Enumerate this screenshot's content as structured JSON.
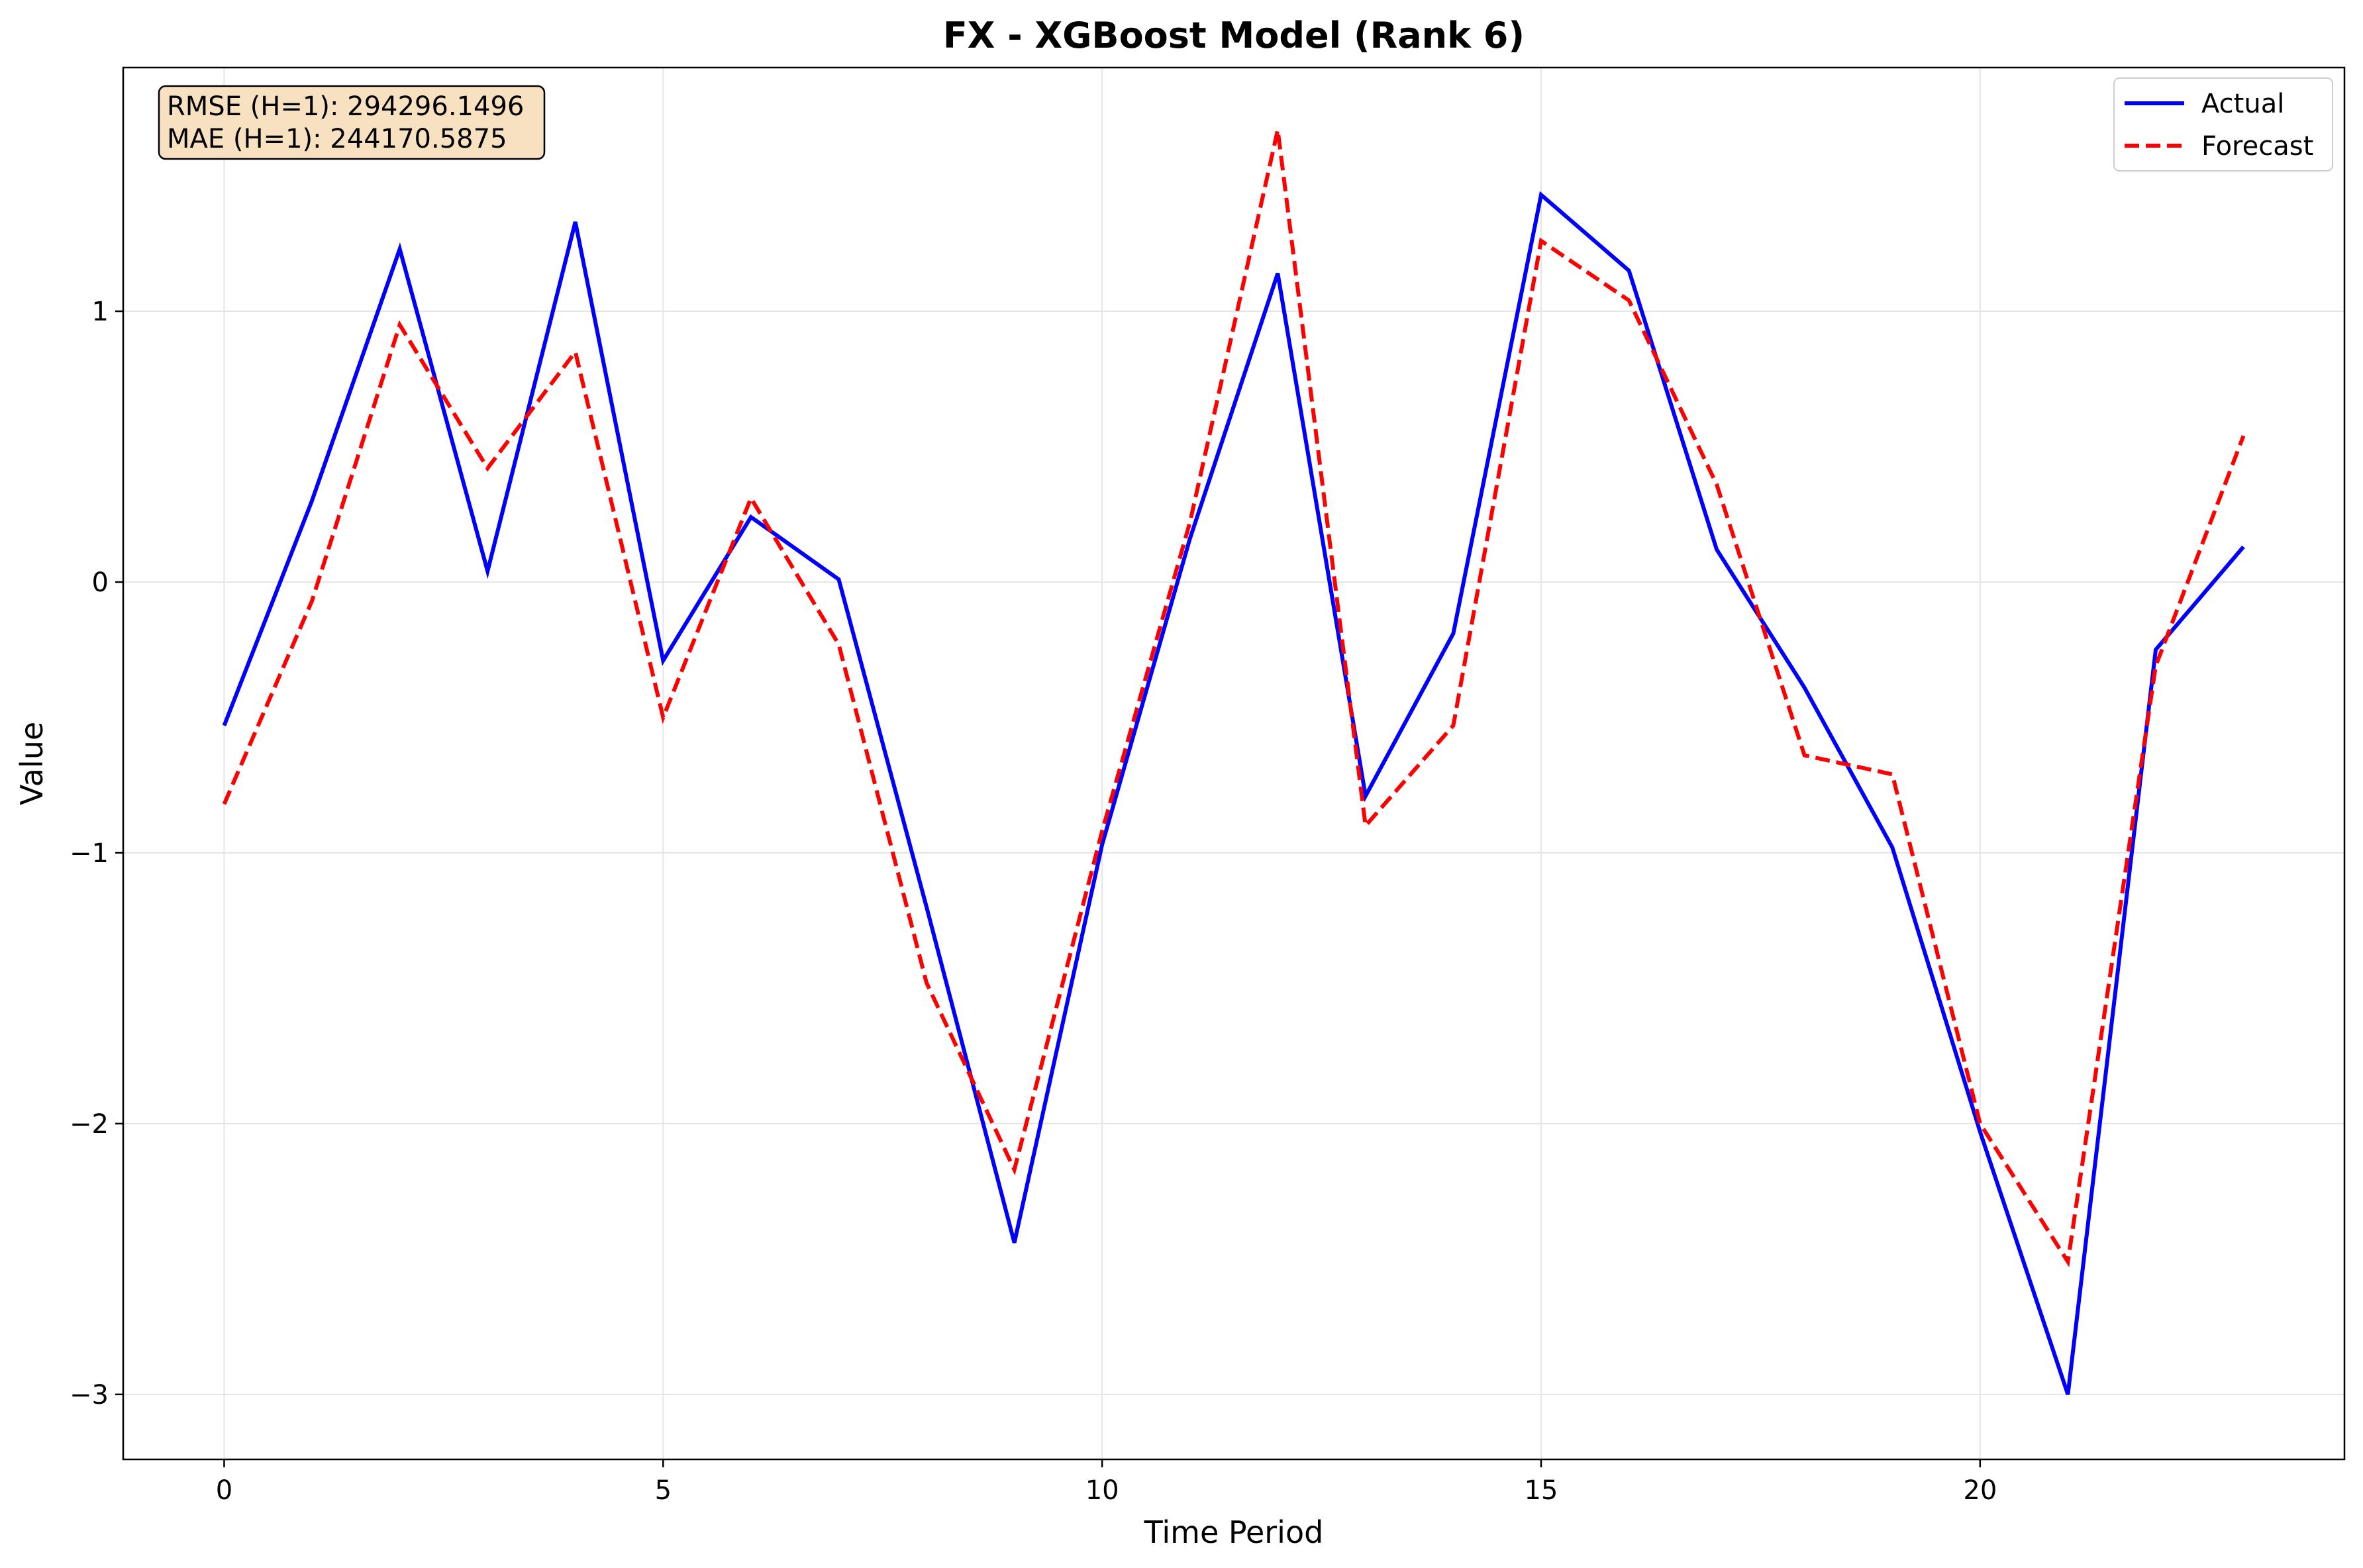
{
  "chart_data": {
    "type": "line",
    "title": "FX - XGBoost Model (Rank 6)",
    "xlabel": "Time Period",
    "ylabel": "Value",
    "xlim": [
      -1.15,
      24.15
    ],
    "ylim": [
      -3.24,
      1.9
    ],
    "xticks": [
      0,
      5,
      10,
      15,
      20
    ],
    "yticks": [
      1,
      0,
      -1,
      -2,
      -3
    ],
    "ytick_labels": [
      "1",
      "0",
      "−1",
      "−2",
      "−3"
    ],
    "grid": true,
    "legend_position": "top-right",
    "x": [
      0,
      1,
      2,
      3,
      4,
      5,
      6,
      7,
      8,
      9,
      10,
      11,
      12,
      13,
      14,
      15,
      16,
      17,
      18,
      19,
      20,
      21,
      22,
      23
    ],
    "series": [
      {
        "name": "Actual",
        "color": "#0000ff",
        "style": "solid",
        "values": [
          -0.53,
          0.3,
          1.23,
          0.04,
          1.33,
          -0.29,
          0.24,
          0.01,
          -1.2,
          -2.44,
          -0.97,
          0.16,
          1.14,
          -0.79,
          -0.19,
          1.43,
          1.15,
          0.12,
          -0.39,
          -0.98,
          -2.03,
          -3.0,
          -0.25,
          0.13
        ]
      },
      {
        "name": "Forecast",
        "color": "#ff0000",
        "style": "dashed",
        "values": [
          -0.82,
          -0.07,
          0.95,
          0.42,
          0.85,
          -0.5,
          0.31,
          -0.23,
          -1.48,
          -2.17,
          -0.92,
          0.22,
          1.67,
          -0.9,
          -0.53,
          1.26,
          1.04,
          0.36,
          -0.64,
          -0.71,
          -2.0,
          -2.51,
          -0.31,
          0.54
        ]
      }
    ],
    "annotations": [
      "RMSE (H=1): 294296.1496",
      "MAE (H=1): 244170.5875"
    ]
  }
}
